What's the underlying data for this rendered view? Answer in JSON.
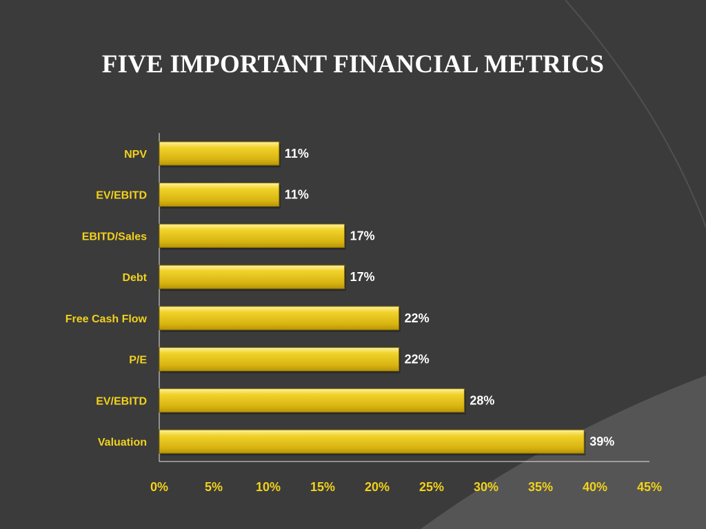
{
  "slide": {
    "title": "FIVE IMPORTANT FINANCIAL METRICS",
    "background_color": "#3b3b3b",
    "accent_color": "#f2d21c",
    "bar_color": "#e8c416"
  },
  "chart_data": {
    "type": "bar",
    "orientation": "horizontal",
    "categories": [
      "NPV",
      "EV/EBITD",
      "EBITD/Sales",
      "Debt",
      "Free Cash Flow",
      "P/E",
      "EV/EBITD",
      "Valuation"
    ],
    "values": [
      11,
      11,
      17,
      17,
      22,
      22,
      28,
      39
    ],
    "data_labels": [
      "11%",
      "11%",
      "17%",
      "17%",
      "22%",
      "22%",
      "28%",
      "39%"
    ],
    "x_ticks": [
      "0%",
      "5%",
      "10%",
      "15%",
      "20%",
      "25%",
      "30%",
      "35%",
      "40%",
      "45%"
    ],
    "xlim": [
      0,
      45
    ],
    "grid": false,
    "legend": "none"
  }
}
